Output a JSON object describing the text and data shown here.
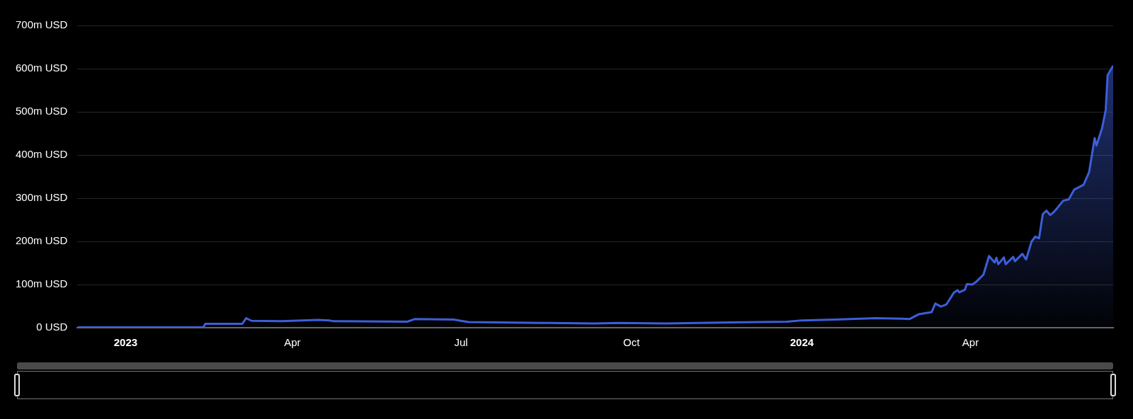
{
  "chart_data": {
    "type": "area",
    "x": [
      "2022-12-06",
      "2023-02-12",
      "2023-02-13",
      "2023-03-05",
      "2023-03-07",
      "2023-03-10",
      "2023-03-26",
      "2023-04-15",
      "2023-04-21",
      "2023-04-23",
      "2023-06-02",
      "2023-06-06",
      "2023-06-27",
      "2023-07-05",
      "2023-08-17",
      "2023-09-11",
      "2023-09-24",
      "2023-10-20",
      "2023-12-24",
      "2024-01-01",
      "2024-01-19",
      "2024-02-10",
      "2024-02-24",
      "2024-02-28",
      "2024-03-04",
      "2024-03-11",
      "2024-03-13",
      "2024-03-16",
      "2024-03-19",
      "2024-03-23",
      "2024-03-25",
      "2024-03-26",
      "2024-03-29",
      "2024-03-30",
      "2024-04-02",
      "2024-04-04",
      "2024-04-08",
      "2024-04-11",
      "2024-04-14",
      "2024-04-15",
      "2024-04-16",
      "2024-04-19",
      "2024-04-20",
      "2024-04-24",
      "2024-04-25",
      "2024-04-29",
      "2024-05-01",
      "2024-05-04",
      "2024-05-06",
      "2024-05-08",
      "2024-05-10",
      "2024-05-12",
      "2024-05-14",
      "2024-05-16",
      "2024-05-18",
      "2024-05-21",
      "2024-05-24",
      "2024-05-27",
      "2024-06-01",
      "2024-06-04",
      "2024-06-07",
      "2024-06-08",
      "2024-06-11",
      "2024-06-13",
      "2024-06-14",
      "2024-06-17"
    ],
    "series": [
      {
        "color": "#3d5ed8",
        "values": [
          1,
          1,
          9,
          9,
          22,
          16,
          15,
          18,
          17,
          15,
          14,
          20,
          19,
          13,
          11,
          10,
          11,
          10,
          14,
          17,
          19,
          22,
          21,
          20,
          31,
          36,
          56,
          49,
          54,
          81,
          87,
          82,
          88,
          101,
          100,
          106,
          123,
          166,
          151,
          162,
          147,
          163,
          147,
          164,
          154,
          171,
          158,
          200,
          211,
          207,
          263,
          271,
          261,
          268,
          278,
          294,
          297,
          320,
          331,
          360,
          439,
          422,
          462,
          505,
          585,
          607
        ]
      }
    ],
    "xlim": [
      "2022-12-06",
      "2024-06-17"
    ],
    "xticks": [
      {
        "value": "2023-01-01",
        "label": "2023"
      },
      {
        "value": "2023-04-01",
        "label": "Apr"
      },
      {
        "value": "2023-07-01",
        "label": "Jul"
      },
      {
        "value": "2023-10-01",
        "label": "Oct"
      },
      {
        "value": "2024-01-01",
        "label": "2024"
      },
      {
        "value": "2024-04-01",
        "label": "Apr"
      }
    ],
    "ylim": [
      0,
      700
    ],
    "yticks": [
      {
        "value": 0,
        "label": "0 USD"
      },
      {
        "value": 100,
        "label": "100m USD"
      },
      {
        "value": 200,
        "label": "200m USD"
      },
      {
        "value": 300,
        "label": "300m USD"
      },
      {
        "value": 400,
        "label": "400m USD"
      },
      {
        "value": 500,
        "label": "500m USD"
      },
      {
        "value": 600,
        "label": "600m USD"
      },
      {
        "value": 700,
        "label": "700m USD"
      }
    ],
    "grid": "y",
    "marker": "none"
  }
}
